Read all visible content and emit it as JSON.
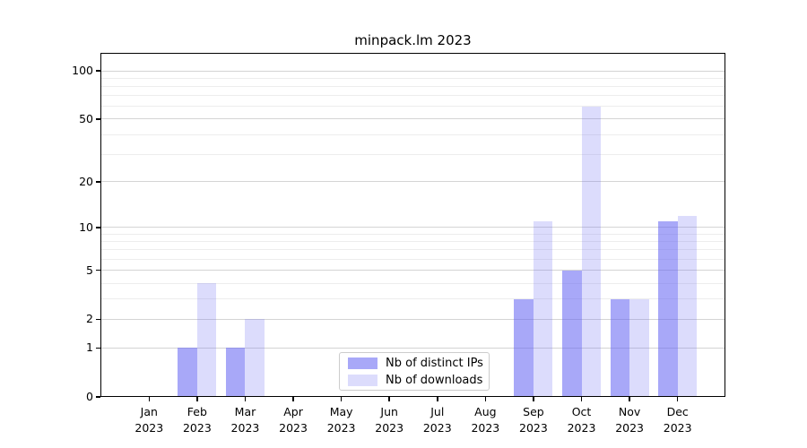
{
  "chart_data": {
    "type": "bar",
    "title": "minpack.lm 2023",
    "year": "2023",
    "categories": [
      "Jan",
      "Feb",
      "Mar",
      "Apr",
      "May",
      "Jun",
      "Jul",
      "Aug",
      "Sep",
      "Oct",
      "Nov",
      "Dec"
    ],
    "series": [
      {
        "name": "Nb of distinct IPs",
        "color": "rgba(102,102,242,0.57)",
        "values": [
          0,
          1,
          1,
          0,
          0,
          0,
          0,
          0,
          3,
          5,
          3,
          11
        ]
      },
      {
        "name": "Nb of downloads",
        "color": "rgba(102,102,242,0.23)",
        "values": [
          0,
          4,
          2,
          0,
          0,
          0,
          0,
          0,
          11,
          60,
          3,
          12
        ]
      }
    ],
    "xlabel": "",
    "ylabel": "",
    "yscale": "log1p",
    "ylim": [
      0,
      128
    ],
    "yticks": [
      0,
      1,
      2,
      5,
      10,
      20,
      50,
      100
    ],
    "minor_gridlines": [
      3,
      4,
      6,
      7,
      8,
      9,
      30,
      40,
      60,
      70,
      80,
      90
    ],
    "grid": "on",
    "legend_position": "lower center"
  },
  "colors": {
    "major_grid": "#d4d4d4",
    "minor_grid": "#ededed",
    "axis": "#000000",
    "legend_border": "#cccccc"
  }
}
